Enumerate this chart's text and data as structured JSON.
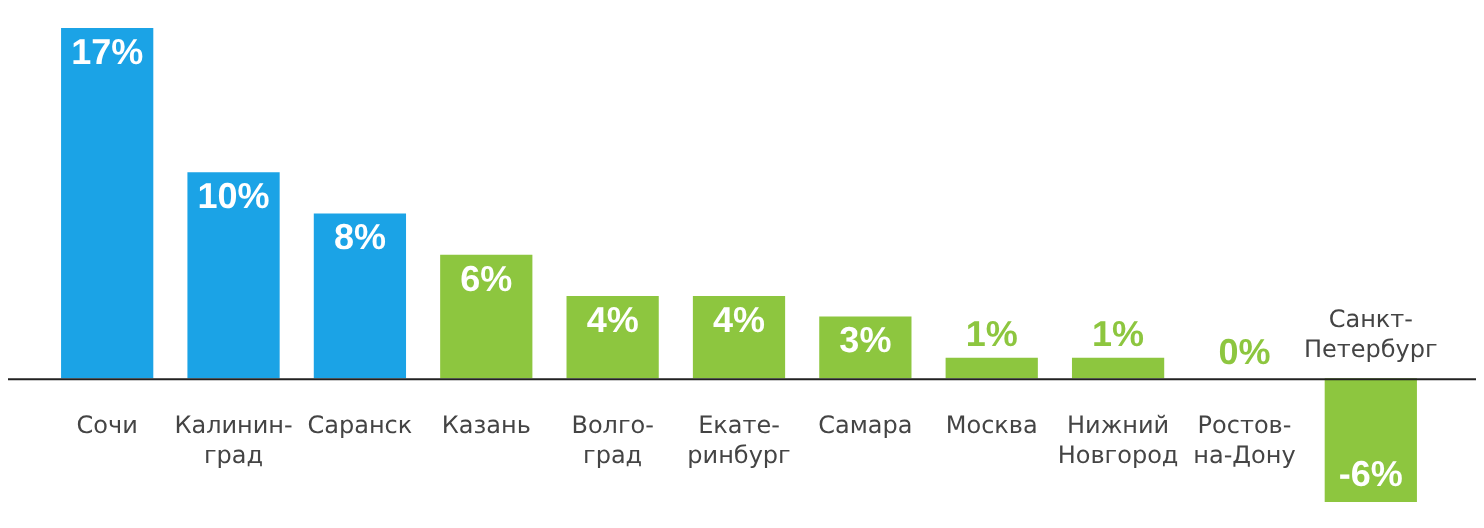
{
  "chart_data": {
    "type": "bar",
    "categories": [
      "Сочи",
      "Калинин-\nград",
      "Саранск",
      "Казань",
      "Волго-\nград",
      "Екате-\nринбург",
      "Самара",
      "Москва",
      "Нижний\nНовгород",
      "Ростов-\nна-Дону",
      "Санкт-\nПетербург"
    ],
    "values": [
      17,
      10,
      8,
      6,
      4,
      4,
      3,
      1,
      1,
      0,
      -6
    ],
    "colors": [
      "#1ba3e6",
      "#1ba3e6",
      "#1ba3e6",
      "#8dc63f",
      "#8dc63f",
      "#8dc63f",
      "#8dc63f",
      "#8dc63f",
      "#8dc63f",
      "#8dc63f",
      "#8dc63f"
    ],
    "value_labels": [
      "17%",
      "10%",
      "8%",
      "6%",
      "4%",
      "4%",
      "3%",
      "1%",
      "1%",
      "0%",
      "-6%"
    ],
    "legend": false
  }
}
